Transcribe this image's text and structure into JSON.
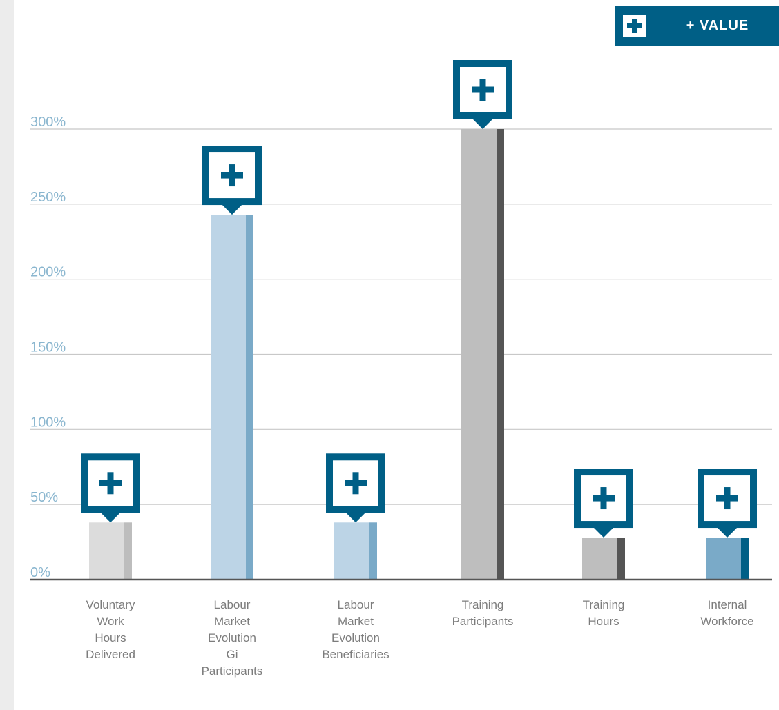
{
  "header": {
    "value_button_label": "+ VALUE",
    "value_button_icon": "plus-icon"
  },
  "colors": {
    "accent": "#005f86",
    "tick_label": "#8ab6cf",
    "grid": "#c8c8c8",
    "axis": "#555555"
  },
  "chart_data": {
    "type": "bar",
    "categories": [
      "Voluntary Work Hours Delivered",
      "Labour Market Evolution Gi Participants",
      "Labour Market Evolution Beneficiaries",
      "Training Participants",
      "Training Hours",
      "Internal Workforce"
    ],
    "category_lines": [
      [
        "Voluntary",
        "Work",
        "Hours",
        "Delivered"
      ],
      [
        "Labour",
        "Market",
        "Evolution",
        "Gi",
        "Participants"
      ],
      [
        "Labour",
        "Market",
        "Evolution",
        "Beneficiaries"
      ],
      [
        "Training",
        "Participants"
      ],
      [
        "Training",
        "Hours"
      ],
      [
        "Internal",
        "Workforce"
      ]
    ],
    "values": [
      38,
      243,
      38,
      300,
      28,
      28
    ],
    "bar_colors": [
      "#dcdcdc",
      "#bcd4e6",
      "#bcd4e6",
      "#bebebe",
      "#bebebe",
      "#7aaac8"
    ],
    "bar_accent_colors": [
      "#bdbdbd",
      "#7aaac8",
      "#7aaac8",
      "#555555",
      "#555555",
      "#005f86"
    ],
    "y_ticks": [
      "0%",
      "50%",
      "100%",
      "150%",
      "200%",
      "250%",
      "300%"
    ],
    "ylim": [
      0,
      300
    ],
    "grid": true,
    "title": "",
    "xlabel": "",
    "ylabel": ""
  }
}
